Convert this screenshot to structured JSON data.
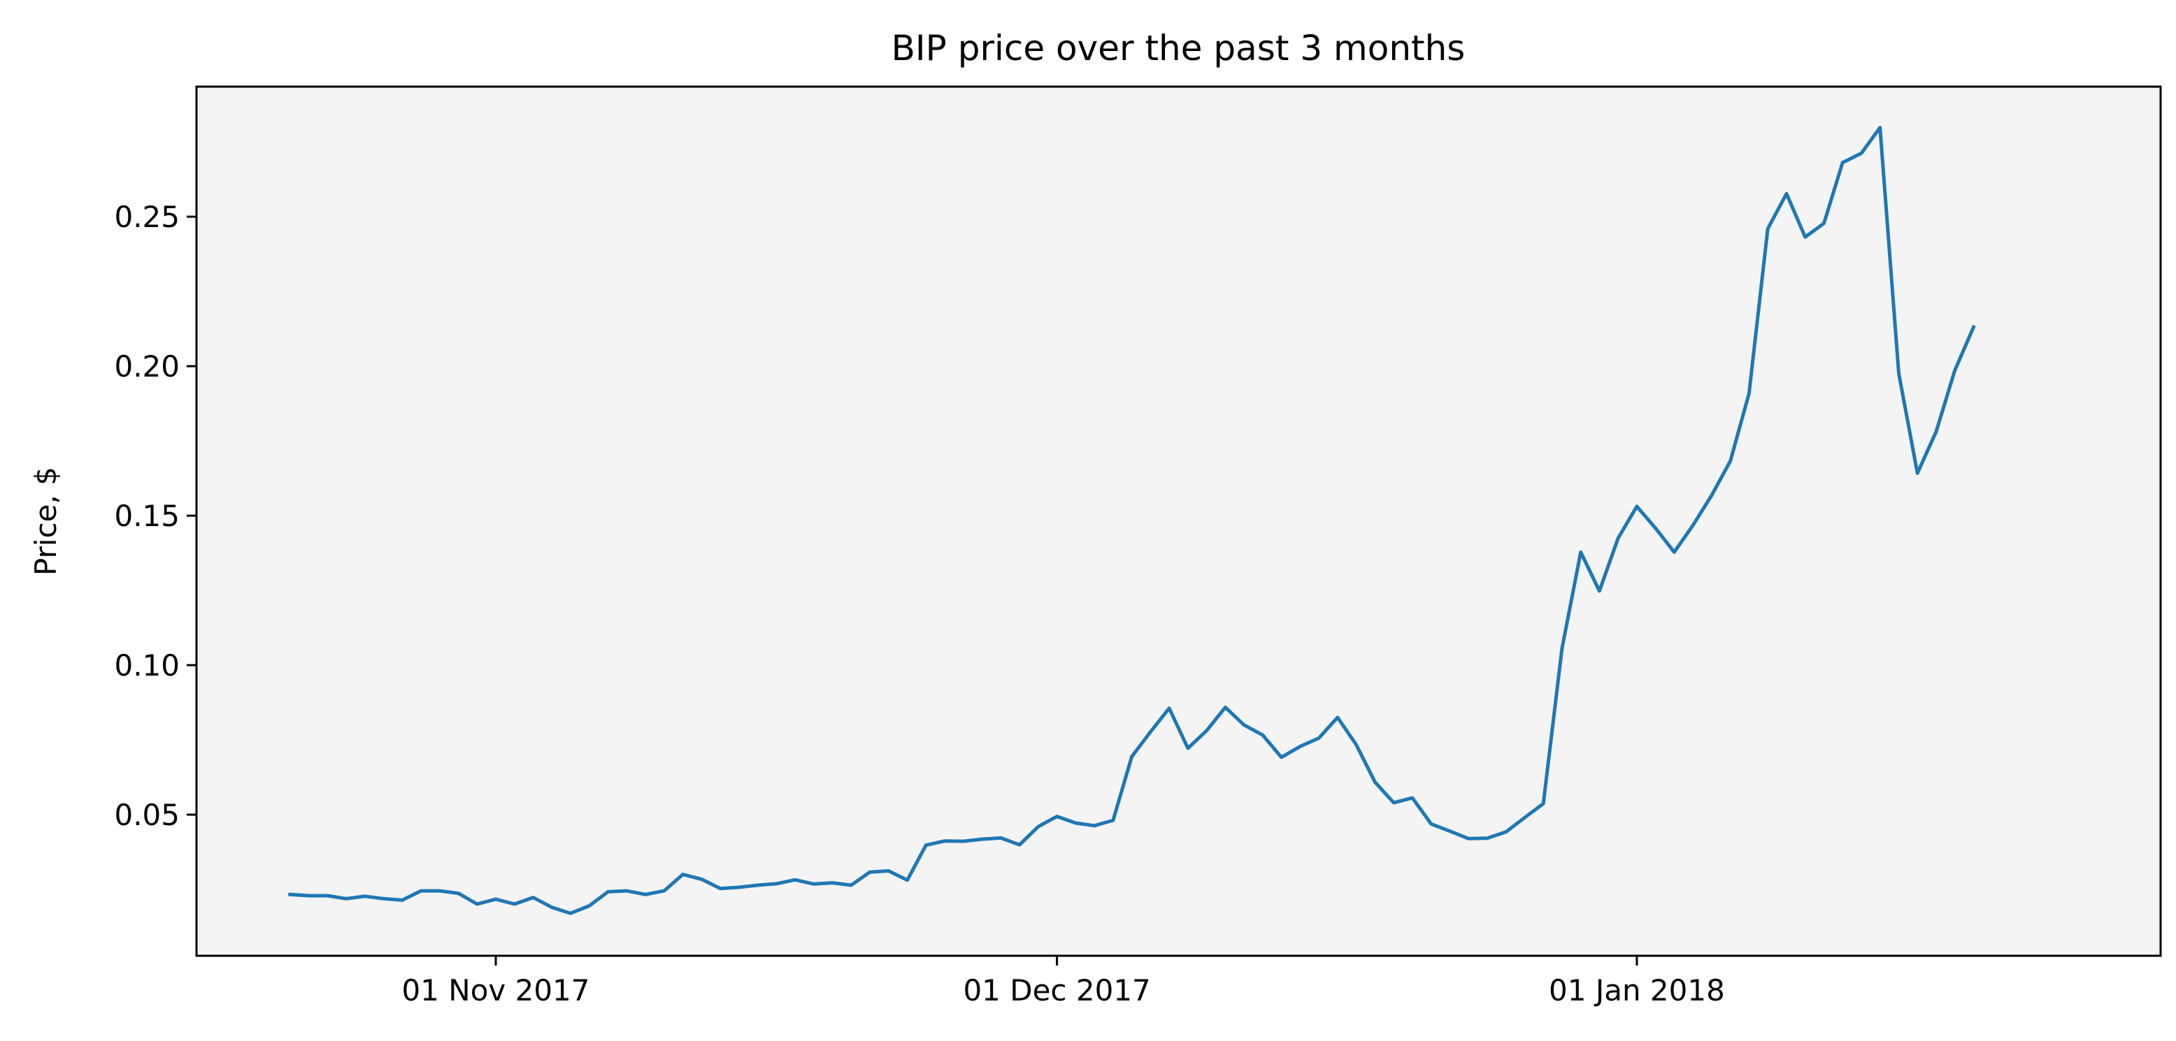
{
  "chart_data": {
    "type": "line",
    "title": "BIP price over the past 3 months",
    "xlabel": "",
    "ylabel": "Price, $",
    "x_type": "date",
    "x_start": "2017-10-21",
    "x_step_days": 1,
    "xlim": [
      "2017-10-16",
      "2018-01-29"
    ],
    "ylim": [
      0.0028,
      0.2935
    ],
    "grid": false,
    "x_ticks": [
      {
        "date": "2017-11-01",
        "label": "01 Nov 2017"
      },
      {
        "date": "2017-12-01",
        "label": "01 Dec 2017"
      },
      {
        "date": "2018-01-01",
        "label": "01 Jan 2018"
      }
    ],
    "y_ticks": [
      {
        "value": 0.05,
        "label": "0.05"
      },
      {
        "value": 0.1,
        "label": "0.10"
      },
      {
        "value": 0.15,
        "label": "0.15"
      },
      {
        "value": 0.2,
        "label": "0.20"
      },
      {
        "value": 0.25,
        "label": "0.25"
      }
    ],
    "series": [
      {
        "color": "#1f77b4",
        "values": [
          0.0233,
          0.0229,
          0.0229,
          0.0219,
          0.0227,
          0.0219,
          0.0214,
          0.0245,
          0.0245,
          0.0237,
          0.0201,
          0.0217,
          0.0201,
          0.0223,
          0.019,
          0.017,
          0.0195,
          0.0242,
          0.0245,
          0.0233,
          0.0245,
          0.03,
          0.0284,
          0.0253,
          0.0257,
          0.0264,
          0.0269,
          0.0282,
          0.0268,
          0.0272,
          0.0264,
          0.0308,
          0.0312,
          0.0281,
          0.0398,
          0.0412,
          0.0411,
          0.0418,
          0.0422,
          0.0399,
          0.046,
          0.0494,
          0.0472,
          0.0463,
          0.0481,
          0.0694,
          0.0777,
          0.0856,
          0.0722,
          0.0781,
          0.0859,
          0.08,
          0.0766,
          0.0692,
          0.0728,
          0.0756,
          0.0825,
          0.0734,
          0.0609,
          0.054,
          0.0556,
          0.0469,
          0.0445,
          0.042,
          0.0421,
          0.0442,
          0.049,
          0.0537,
          0.1056,
          0.1378,
          0.1248,
          0.1425,
          0.1531,
          0.1458,
          0.1378,
          0.1468,
          0.1568,
          0.1683,
          0.1909,
          0.246,
          0.2577,
          0.2432,
          0.2478,
          0.2681,
          0.2712,
          0.2798,
          0.1976,
          0.1642,
          0.1781,
          0.1986,
          0.2131
        ]
      }
    ]
  },
  "colors": {
    "plot_background": "#f4f4f4",
    "line": "#1f77b4",
    "axes": "#000000"
  }
}
